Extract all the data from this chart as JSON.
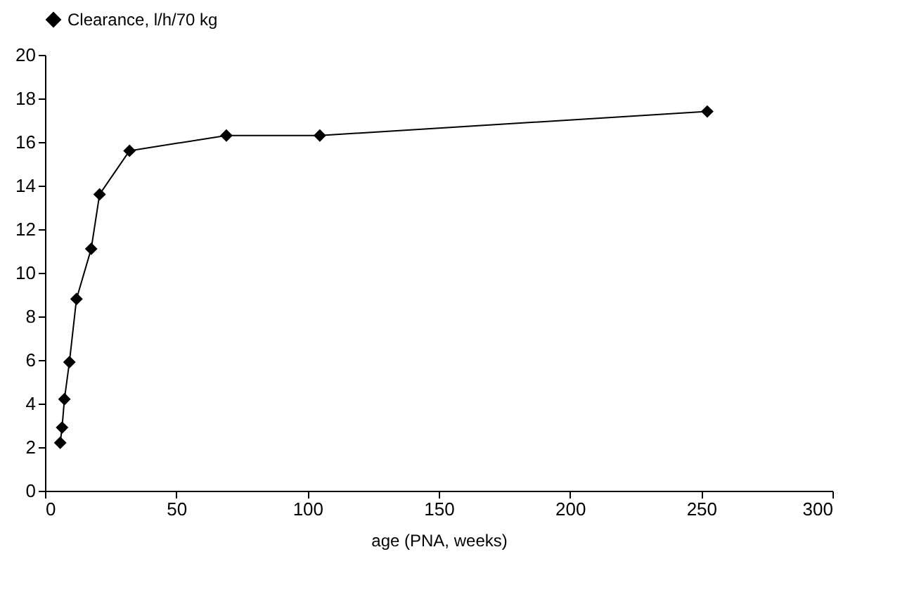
{
  "chart_data": {
    "type": "line",
    "xlabel": "age (PNA, weeks)",
    "x": [
      5.8,
      6.5,
      7.4,
      9.3,
      12.0,
      17.6,
      20.8,
      32.2,
      69.1,
      104.7,
      252.3
    ],
    "series": [
      {
        "name": "Clearance, l/h/70 kg",
        "color": "#000000",
        "values": [
          2.2,
          2.9,
          4.2,
          5.9,
          8.8,
          11.1,
          13.6,
          15.6,
          16.3,
          16.3,
          17.4
        ]
      }
    ],
    "xlim": [
      0,
      300
    ],
    "xticks": [
      0,
      50,
      100,
      150,
      200,
      250,
      300
    ],
    "ylim": [
      0,
      20
    ],
    "yticks": [
      0,
      2,
      4,
      6,
      8,
      10,
      12,
      14,
      16,
      18,
      20
    ],
    "grid": false,
    "legend": "top",
    "marker": "diamond",
    "line_style": "solid"
  }
}
